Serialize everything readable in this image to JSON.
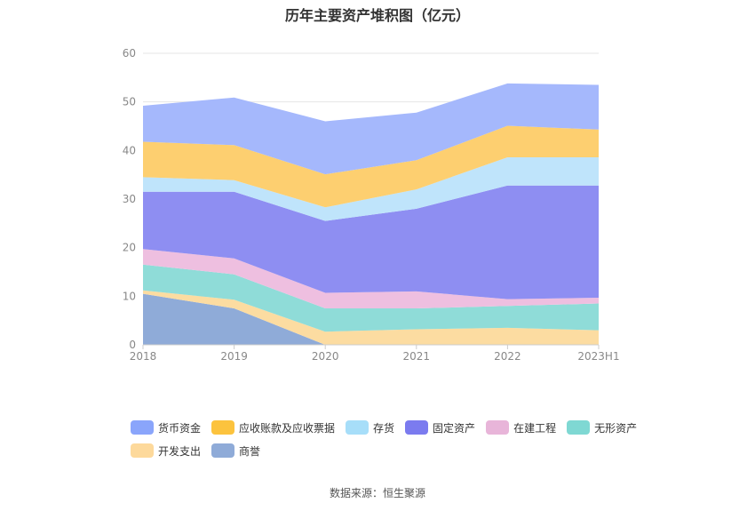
{
  "title": "历年主要资产堆积图（亿元）",
  "source": "数据来源：恒生聚源",
  "chart_data": {
    "type": "area",
    "stacked": true,
    "categories": [
      "2018",
      "2019",
      "2020",
      "2021",
      "2022",
      "2023H1"
    ],
    "ylim": [
      0,
      60
    ],
    "yticks": [
      0,
      10,
      20,
      30,
      40,
      50,
      60
    ],
    "grid": true,
    "legend_position": "bottom",
    "series": [
      {
        "name": "商誉",
        "color": "#8fabd8",
        "values": [
          10.5,
          7.5,
          0,
          0,
          0,
          0
        ]
      },
      {
        "name": "开发支出",
        "color": "#fcdca1",
        "values": [
          0.7,
          1.8,
          2.7,
          3.2,
          3.5,
          3.0
        ]
      },
      {
        "name": "无形资产",
        "color": "#8fdcd8",
        "values": [
          5.3,
          5.2,
          4.8,
          4.3,
          4.5,
          5.5
        ]
      },
      {
        "name": "在建工程",
        "color": "#eebfe0",
        "values": [
          3.2,
          3.3,
          3.2,
          3.5,
          1.4,
          1.2
        ]
      },
      {
        "name": "固定资产",
        "color": "#8e8ef2",
        "values": [
          11.8,
          13.7,
          14.8,
          17.0,
          23.4,
          23.1
        ]
      },
      {
        "name": "存货",
        "color": "#bfe4fb",
        "values": [
          3.0,
          2.4,
          2.8,
          4.0,
          5.8,
          5.8
        ]
      },
      {
        "name": "应收账款及应收票据",
        "color": "#fdcf70",
        "values": [
          7.3,
          7.2,
          6.8,
          6.0,
          6.5,
          5.7
        ]
      },
      {
        "name": "货币资金",
        "color": "#a5b8fc",
        "values": [
          7.4,
          9.8,
          10.9,
          9.8,
          8.7,
          9.2
        ]
      }
    ],
    "legend_order": [
      "货币资金",
      "应收账款及应收票据",
      "存货",
      "固定资产",
      "在建工程",
      "无形资产",
      "开发支出",
      "商誉"
    ],
    "legend_colors": {
      "货币资金": "#8aa5fb",
      "应收账款及应收票据": "#fcc33e",
      "存货": "#a7def9",
      "固定资产": "#7b7bef",
      "在建工程": "#e8b5d9",
      "无形资产": "#7fd8d3",
      "开发支出": "#fdd99b",
      "商誉": "#8fabd8"
    }
  }
}
